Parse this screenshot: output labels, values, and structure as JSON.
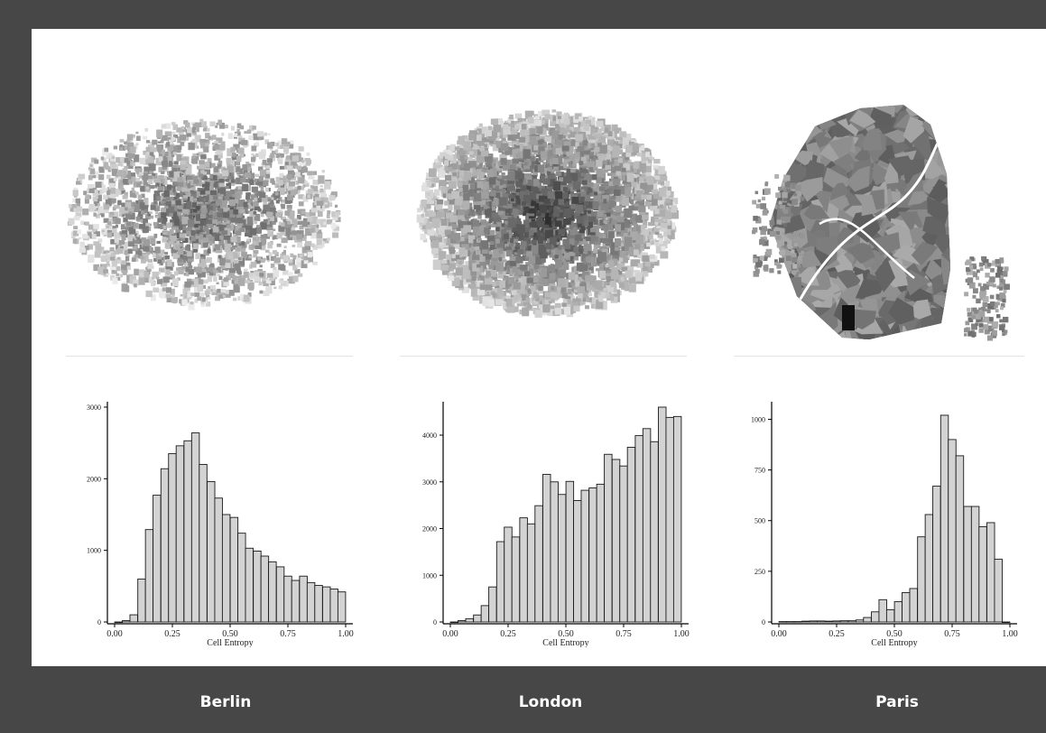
{
  "cities": [
    {
      "id": "berlin",
      "label": "Berlin",
      "map_icon": "berlin-entropy-map"
    },
    {
      "id": "london",
      "label": "London",
      "map_icon": "london-entropy-map"
    },
    {
      "id": "paris",
      "label": "Paris",
      "map_icon": "paris-entropy-map"
    }
  ],
  "colors": {
    "frame": "#474747",
    "bar_fill": "#d3d3d3",
    "bar_stroke": "#1a1a1a",
    "text_light": "#ffffff"
  },
  "chart_data": [
    {
      "type": "bar",
      "city": "Berlin",
      "title": "",
      "xlabel": "Cell Entropy",
      "ylabel": "",
      "xlim": [
        0,
        1
      ],
      "xticks": [
        "0.00",
        "0.25",
        "0.50",
        "0.75",
        "1.00"
      ],
      "ylim": [
        0,
        3000
      ],
      "yticks": [
        "0",
        "1000",
        "2000",
        "3000"
      ],
      "bin_width": 0.0333,
      "x": [
        0.017,
        0.05,
        0.083,
        0.117,
        0.15,
        0.183,
        0.217,
        0.25,
        0.283,
        0.317,
        0.35,
        0.383,
        0.417,
        0.45,
        0.483,
        0.517,
        0.55,
        0.583,
        0.617,
        0.65,
        0.683,
        0.717,
        0.75,
        0.783,
        0.817,
        0.85,
        0.883,
        0.917,
        0.95,
        0.983
      ],
      "values": [
        0,
        20,
        100,
        600,
        1290,
        1770,
        2140,
        2350,
        2460,
        2530,
        2640,
        2200,
        1960,
        1730,
        1500,
        1460,
        1240,
        1030,
        990,
        920,
        840,
        770,
        640,
        580,
        640,
        550,
        510,
        490,
        460,
        420
      ]
    },
    {
      "type": "bar",
      "city": "London",
      "title": "",
      "xlabel": "Cell Entropy",
      "ylabel": "",
      "xlim": [
        0,
        1
      ],
      "xticks": [
        "0.00",
        "0.25",
        "0.50",
        "0.75",
        "1.00"
      ],
      "ylim": [
        0,
        4600
      ],
      "yticks": [
        "0",
        "1000",
        "2000",
        "3000",
        "4000"
      ],
      "bin_width": 0.0333,
      "x": [
        0.017,
        0.05,
        0.083,
        0.117,
        0.15,
        0.183,
        0.217,
        0.25,
        0.283,
        0.317,
        0.35,
        0.383,
        0.417,
        0.45,
        0.483,
        0.517,
        0.55,
        0.583,
        0.617,
        0.65,
        0.683,
        0.717,
        0.75,
        0.783,
        0.817,
        0.85,
        0.883,
        0.917,
        0.95,
        0.983
      ],
      "values": [
        0,
        30,
        70,
        150,
        350,
        750,
        1720,
        2030,
        1820,
        2230,
        2100,
        2490,
        3160,
        3000,
        2730,
        3010,
        2600,
        2820,
        2870,
        2950,
        3590,
        3480,
        3340,
        3740,
        3990,
        4140,
        3860,
        4600,
        4380,
        4400
      ]
    },
    {
      "type": "bar",
      "city": "Paris",
      "title": "",
      "xlabel": "Cell Entropy",
      "ylabel": "",
      "xlim": [
        0,
        1
      ],
      "xticks": [
        "0.00",
        "0.25",
        "0.50",
        "0.75",
        "1.00"
      ],
      "ylim": [
        0,
        1060
      ],
      "yticks": [
        "0",
        "250",
        "500",
        "750",
        "1000"
      ],
      "bin_width": 0.0333,
      "x": [
        0.017,
        0.05,
        0.083,
        0.117,
        0.15,
        0.183,
        0.217,
        0.25,
        0.283,
        0.317,
        0.35,
        0.383,
        0.417,
        0.45,
        0.483,
        0.517,
        0.55,
        0.583,
        0.617,
        0.65,
        0.683,
        0.717,
        0.75,
        0.783,
        0.817,
        0.85,
        0.883,
        0.917,
        0.95,
        0.983
      ],
      "values": [
        2,
        2,
        2,
        4,
        5,
        5,
        4,
        5,
        6,
        6,
        10,
        22,
        50,
        110,
        60,
        100,
        145,
        165,
        420,
        530,
        670,
        1020,
        900,
        820,
        570,
        570,
        470,
        490,
        310,
        0
      ]
    }
  ]
}
